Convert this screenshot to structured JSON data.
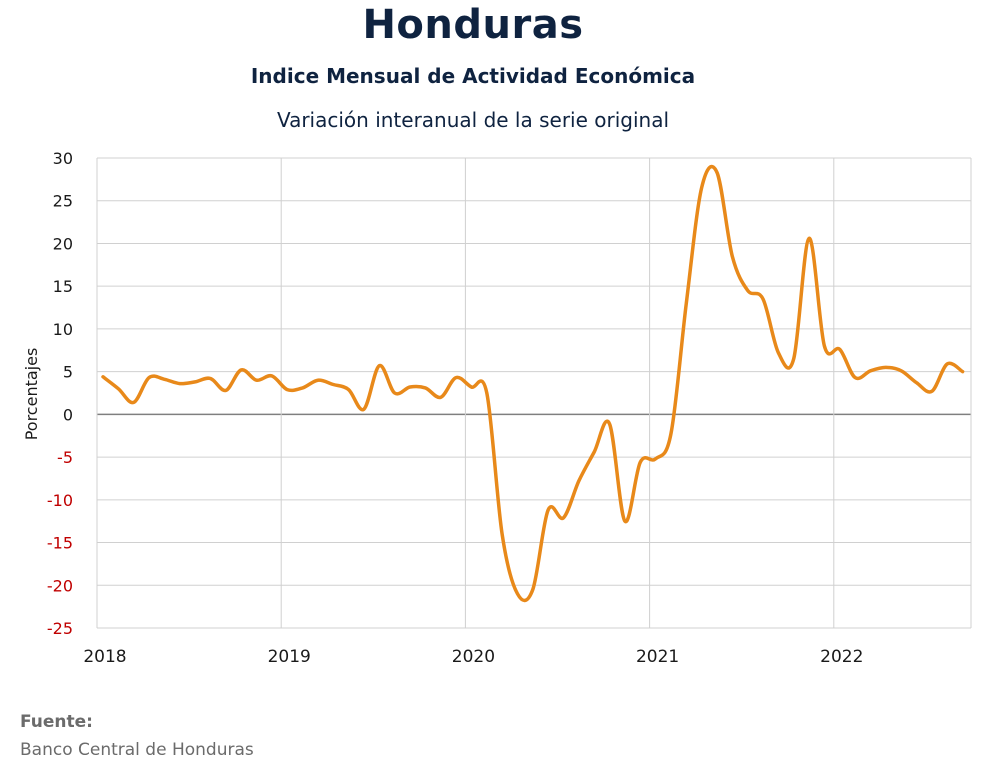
{
  "header": {
    "title": "Honduras",
    "subtitle": "Indice Mensual de  Actividad Económica",
    "subtitle2": "Variación interanual de la serie original"
  },
  "source": {
    "label": "Fuente:",
    "value": "Banco Central de Honduras"
  },
  "colors": {
    "line": "#e8891a",
    "negative_tick": "#c00000",
    "positive_tick": "#1a1a1a",
    "zero_line": "#7f7f7f",
    "grid": "#d0d0d0"
  },
  "chart_data": {
    "type": "line",
    "title": "Honduras",
    "ylabel": "Porcentajes",
    "xlabel": "",
    "ylim": [
      -25,
      30
    ],
    "yticks": [
      30,
      25,
      20,
      15,
      10,
      5,
      0,
      -5,
      -10,
      -15,
      -20,
      -25
    ],
    "xticks": [
      "2018",
      "2019",
      "2020",
      "2021",
      "2022"
    ],
    "grid": true,
    "series": [
      {
        "name": "",
        "x": [
          "2018-01",
          "2018-02",
          "2018-03",
          "2018-04",
          "2018-05",
          "2018-06",
          "2018-07",
          "2018-08",
          "2018-09",
          "2018-10",
          "2018-11",
          "2018-12",
          "2019-01",
          "2019-02",
          "2019-03",
          "2019-04",
          "2019-05",
          "2019-06",
          "2019-07",
          "2019-08",
          "2019-09",
          "2019-10",
          "2019-11",
          "2019-12",
          "2020-01",
          "2020-02",
          "2020-03",
          "2020-04",
          "2020-05",
          "2020-06",
          "2020-07",
          "2020-08",
          "2020-09",
          "2020-10",
          "2020-11",
          "2020-12",
          "2021-01",
          "2021-02",
          "2021-03",
          "2021-04",
          "2021-05",
          "2021-06",
          "2021-07",
          "2021-08",
          "2021-09",
          "2021-10",
          "2021-11",
          "2021-12",
          "2022-01",
          "2022-02",
          "2022-03",
          "2022-04",
          "2022-05",
          "2022-06",
          "2022-07",
          "2022-08",
          "2022-09"
        ],
        "values": [
          4.4,
          3.0,
          1.4,
          4.3,
          4.1,
          3.6,
          3.8,
          4.2,
          2.8,
          5.2,
          4.0,
          4.5,
          2.9,
          3.1,
          4.0,
          3.5,
          2.9,
          0.6,
          5.7,
          2.5,
          3.2,
          3.1,
          2.0,
          4.3,
          3.2,
          2.5,
          -14.0,
          -21.0,
          -20.5,
          -11.2,
          -12.1,
          -7.8,
          -4.4,
          -1.1,
          -12.5,
          -5.6,
          -5.2,
          -2.3,
          13.0,
          26.5,
          28.3,
          18.5,
          14.5,
          13.5,
          7.2,
          6.5,
          20.6,
          8.0,
          7.6,
          4.3,
          5.1,
          5.5,
          5.1,
          3.7,
          2.7,
          5.9,
          5.0
        ]
      }
    ]
  }
}
